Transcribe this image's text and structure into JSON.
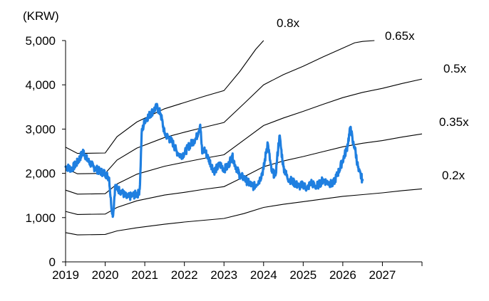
{
  "chart_data": {
    "type": "line",
    "title": "",
    "unit_label": "(KRW)",
    "xlim": [
      2019,
      2028
    ],
    "ylim": [
      0,
      5000
    ],
    "x_ticks": [
      {
        "value": 2019,
        "label": "2019"
      },
      {
        "value": 2020,
        "label": "2020"
      },
      {
        "value": 2021,
        "label": "2021"
      },
      {
        "value": 2022,
        "label": "2022"
      },
      {
        "value": 2023,
        "label": "2023"
      },
      {
        "value": 2024,
        "label": "2024"
      },
      {
        "value": 2025,
        "label": "2025"
      },
      {
        "value": 2026,
        "label": "2026"
      },
      {
        "value": 2027,
        "label": "2027"
      }
    ],
    "y_ticks": [
      {
        "value": 0,
        "label": "0"
      },
      {
        "value": 1000,
        "label": "1,000"
      },
      {
        "value": 2000,
        "label": "2,000"
      },
      {
        "value": 3000,
        "label": "3,000"
      },
      {
        "value": 4000,
        "label": "4,000"
      },
      {
        "value": 5000,
        "label": "5,000"
      }
    ],
    "grid": false,
    "price_color": "#1f7fe0",
    "band_color": "#000000",
    "price_series": {
      "x": [
        2019.0,
        2019.15,
        2019.3,
        2019.45,
        2019.55,
        2019.7,
        2019.85,
        2020.0,
        2020.1,
        2020.15,
        2020.2,
        2020.25,
        2020.3,
        2020.4,
        2020.55,
        2020.7,
        2020.85,
        2020.88,
        2020.92,
        2021.0,
        2021.1,
        2021.2,
        2021.3,
        2021.4,
        2021.5,
        2021.6,
        2021.7,
        2021.8,
        2021.9,
        2022.0,
        2022.1,
        2022.2,
        2022.3,
        2022.4,
        2022.45,
        2022.5,
        2022.6,
        2022.75,
        2022.9,
        2023.0,
        2023.1,
        2023.2,
        2023.3,
        2023.4,
        2023.5,
        2023.6,
        2023.75,
        2023.9,
        2024.0,
        2024.1,
        2024.2,
        2024.3,
        2024.4,
        2024.5,
        2024.6,
        2024.75,
        2024.9,
        2025.0,
        2025.1,
        2025.2,
        2025.3,
        2025.4,
        2025.5,
        2025.6,
        2025.75,
        2025.9,
        2026.0,
        2026.1,
        2026.2,
        2026.25,
        2026.3,
        2026.4,
        2026.5
      ],
      "y": [
        2150,
        2100,
        2250,
        2500,
        2300,
        2150,
        2050,
        2000,
        1900,
        1300,
        1050,
        1700,
        1650,
        1600,
        1450,
        1500,
        1550,
        1750,
        2900,
        3200,
        3300,
        3400,
        3500,
        3350,
        2900,
        2800,
        2700,
        2500,
        2400,
        2450,
        2600,
        2700,
        2800,
        3100,
        2450,
        2550,
        2350,
        2050,
        2200,
        2100,
        2150,
        2400,
        2150,
        1950,
        1900,
        1800,
        1700,
        1850,
        2100,
        2700,
        2050,
        1950,
        2850,
        2150,
        1900,
        1800,
        1700,
        1750,
        1650,
        1800,
        1700,
        1750,
        1850,
        1800,
        1750,
        2050,
        2300,
        2550,
        3050,
        2700,
        2600,
        2050,
        1850
      ]
    },
    "bands": [
      {
        "name": "0.2x",
        "x": [
          2019.0,
          2019.3,
          2020.0,
          2020.3,
          2020.8,
          2021.5,
          2022.0,
          2022.5,
          2023.0,
          2023.5,
          2024.0,
          2024.5,
          2025.0,
          2025.5,
          2026.0,
          2026.5,
          2027.0,
          2027.5,
          2028.0
        ],
        "y": [
          660,
          610,
          620,
          700,
          770,
          850,
          900,
          940,
          980,
          1090,
          1230,
          1300,
          1360,
          1420,
          1480,
          1520,
          1560,
          1610,
          1650
        ]
      },
      {
        "name": "0.35x",
        "x": [
          2019.0,
          2019.3,
          2020.0,
          2020.3,
          2020.8,
          2021.5,
          2022.0,
          2022.5,
          2023.0,
          2023.5,
          2024.0,
          2024.5,
          2025.0,
          2025.5,
          2026.0,
          2026.5,
          2027.0,
          2027.5,
          2028.0
        ],
        "y": [
          1140,
          1070,
          1080,
          1230,
          1380,
          1510,
          1570,
          1640,
          1700,
          1920,
          2150,
          2280,
          2380,
          2490,
          2600,
          2680,
          2740,
          2820,
          2890
        ]
      },
      {
        "name": "0.5x",
        "x": [
          2019.0,
          2019.3,
          2020.0,
          2020.3,
          2020.8,
          2021.5,
          2022.0,
          2022.5,
          2023.0,
          2023.5,
          2024.0,
          2024.5,
          2025.0,
          2025.5,
          2026.0,
          2026.5,
          2027.0,
          2027.5,
          2028.0
        ],
        "y": [
          1620,
          1530,
          1540,
          1760,
          1980,
          2160,
          2250,
          2340,
          2420,
          2750,
          3080,
          3250,
          3400,
          3560,
          3710,
          3830,
          3920,
          4030,
          4130
        ]
      },
      {
        "name": "0.65x",
        "x": [
          2019.0,
          2019.3,
          2020.0,
          2020.3,
          2020.8,
          2021.5,
          2022.0,
          2022.5,
          2023.0,
          2023.5,
          2024.0,
          2024.5,
          2025.0,
          2025.5,
          2026.0,
          2026.3,
          2026.5,
          2026.8
        ],
        "y": [
          2110,
          1990,
          2000,
          2300,
          2570,
          2810,
          2930,
          3040,
          3150,
          3570,
          4000,
          4230,
          4420,
          4630,
          4830,
          4950,
          4980,
          5000
        ]
      },
      {
        "name": "0.8x",
        "x": [
          2019.0,
          2019.3,
          2020.0,
          2020.3,
          2020.8,
          2021.5,
          2022.0,
          2022.5,
          2023.0,
          2023.4,
          2023.8,
          2024.0
        ],
        "y": [
          2590,
          2450,
          2460,
          2830,
          3160,
          3460,
          3600,
          3740,
          3870,
          4300,
          4800,
          5000
        ]
      }
    ],
    "band_labels": [
      {
        "name": "0.8x",
        "text": "0.8x"
      },
      {
        "name": "0.65x",
        "text": "0.65x"
      },
      {
        "name": "0.5x",
        "text": "0.5x"
      },
      {
        "name": "0.35x",
        "text": "0.35x"
      },
      {
        "name": "0.2x",
        "text": "0.2x"
      }
    ]
  }
}
